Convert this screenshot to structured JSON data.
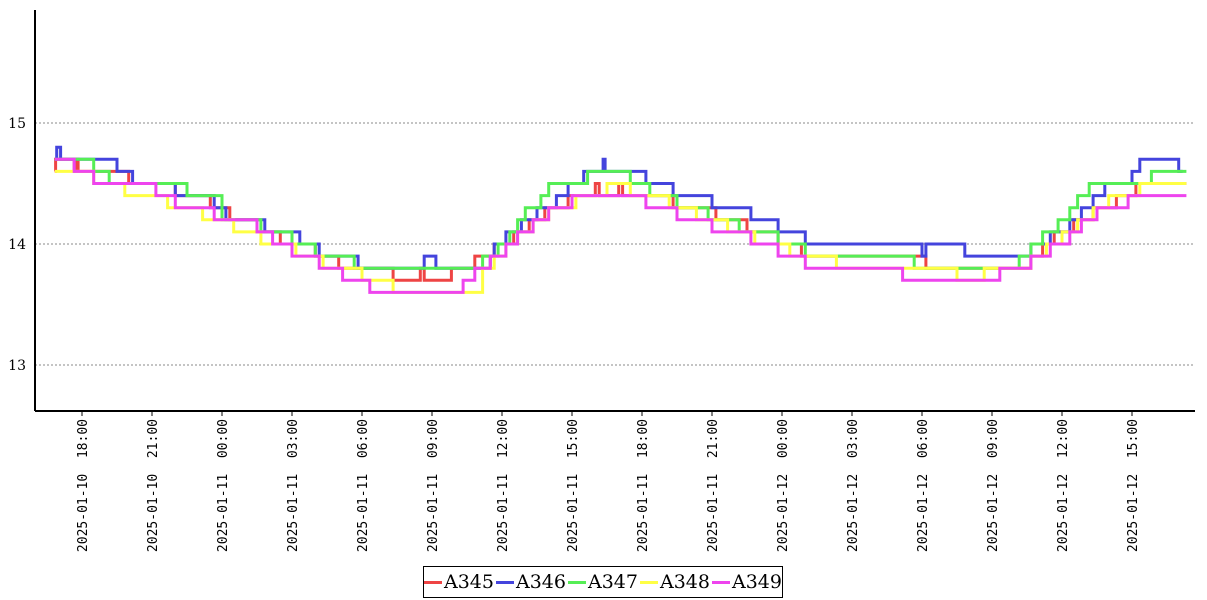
{
  "chart_data": {
    "type": "line",
    "title": "",
    "xlabel": "",
    "ylabel": "",
    "x_range": [
      "2025-01-10 16:30",
      "2025-01-12 18:10"
    ],
    "ylim": [
      12.6,
      15.95
    ],
    "y_ticks": [
      13,
      14,
      15
    ],
    "y_tick_labels": [
      "13",
      "14",
      "15"
    ],
    "x_ticks": [
      "2025-01-10 18:00",
      "2025-01-10 21:00",
      "2025-01-11 00:00",
      "2025-01-11 03:00",
      "2025-01-11 06:00",
      "2025-01-11 09:00",
      "2025-01-11 12:00",
      "2025-01-11 15:00",
      "2025-01-11 18:00",
      "2025-01-11 21:00",
      "2025-01-12 00:00",
      "2025-01-12 03:00",
      "2025-01-12 06:00",
      "2025-01-12 09:00",
      "2025-01-12 12:00",
      "2025-01-12 15:00"
    ],
    "x_tick_labels": [
      "2025-01-10 18:00",
      "2025-01-10 21:00",
      "2025-01-11 00:00",
      "2025-01-11 03:00",
      "2025-01-11 06:00",
      "2025-01-11 09:00",
      "2025-01-11 12:00",
      "2025-01-11 15:00",
      "2025-01-11 18:00",
      "2025-01-11 21:00",
      "2025-01-12 00:00",
      "2025-01-12 03:00",
      "2025-01-12 06:00",
      "2025-01-12 09:00",
      "2025-01-12 12:00",
      "2025-01-12 15:00"
    ],
    "grid": "horizontal dotted",
    "legend_position": "bottom-center",
    "step": true,
    "series": [
      {
        "name": "A345",
        "color": "#ee4444",
        "points": [
          [
            "2025-01-10 16:50",
            14.6
          ],
          [
            "2025-01-10 16:52",
            14.7
          ],
          [
            "2025-01-10 17:40",
            14.6
          ],
          [
            "2025-01-10 17:45",
            14.7
          ],
          [
            "2025-01-10 17:50",
            14.6
          ],
          [
            "2025-01-10 20:00",
            14.5
          ],
          [
            "2025-01-10 22:00",
            14.4
          ],
          [
            "2025-01-10 23:30",
            14.3
          ],
          [
            "2025-01-11 00:20",
            14.2
          ],
          [
            "2025-01-11 01:30",
            14.1
          ],
          [
            "2025-01-11 02:30",
            14.0
          ],
          [
            "2025-01-11 04:00",
            13.9
          ],
          [
            "2025-01-11 05:00",
            13.8
          ],
          [
            "2025-01-11 07:20",
            13.7
          ],
          [
            "2025-01-11 08:30",
            13.8
          ],
          [
            "2025-01-11 08:40",
            13.7
          ],
          [
            "2025-01-11 09:50",
            13.8
          ],
          [
            "2025-01-11 10:50",
            13.9
          ],
          [
            "2025-01-11 11:40",
            14.0
          ],
          [
            "2025-01-11 12:30",
            14.1
          ],
          [
            "2025-01-11 13:10",
            14.2
          ],
          [
            "2025-01-11 13:50",
            14.3
          ],
          [
            "2025-01-11 14:50",
            14.4
          ],
          [
            "2025-01-11 16:00",
            14.5
          ],
          [
            "2025-01-11 16:10",
            14.4
          ],
          [
            "2025-01-11 17:00",
            14.5
          ],
          [
            "2025-01-11 17:10",
            14.4
          ],
          [
            "2025-01-11 19:20",
            14.3
          ],
          [
            "2025-01-11 21:10",
            14.2
          ],
          [
            "2025-01-11 22:30",
            14.1
          ],
          [
            "2025-01-11 23:50",
            14.0
          ],
          [
            "2025-01-12 00:50",
            13.9
          ],
          [
            "2025-01-12 06:10",
            13.8
          ],
          [
            "2025-01-12 10:40",
            13.9
          ],
          [
            "2025-01-12 11:10",
            14.0
          ],
          [
            "2025-01-12 11:40",
            14.1
          ],
          [
            "2025-01-12 12:30",
            14.2
          ],
          [
            "2025-01-12 13:20",
            14.3
          ],
          [
            "2025-01-12 14:20",
            14.4
          ],
          [
            "2025-01-12 15:10",
            14.5
          ],
          [
            "2025-01-12 17:20",
            14.5
          ]
        ]
      },
      {
        "name": "A346",
        "color": "#4444dd",
        "points": [
          [
            "2025-01-10 16:50",
            14.7
          ],
          [
            "2025-01-10 16:55",
            14.8
          ],
          [
            "2025-01-10 17:05",
            14.7
          ],
          [
            "2025-01-10 19:30",
            14.6
          ],
          [
            "2025-01-10 20:10",
            14.5
          ],
          [
            "2025-01-10 22:00",
            14.4
          ],
          [
            "2025-01-10 23:40",
            14.3
          ],
          [
            "2025-01-11 00:10",
            14.2
          ],
          [
            "2025-01-11 01:00",
            14.2
          ],
          [
            "2025-01-11 01:50",
            14.1
          ],
          [
            "2025-01-11 03:20",
            14.0
          ],
          [
            "2025-01-11 04:10",
            13.9
          ],
          [
            "2025-01-11 05:50",
            13.8
          ],
          [
            "2025-01-11 08:40",
            13.9
          ],
          [
            "2025-01-11 09:10",
            13.8
          ],
          [
            "2025-01-11 10:10",
            13.8
          ],
          [
            "2025-01-11 11:30",
            13.9
          ],
          [
            "2025-01-11 11:40",
            14.0
          ],
          [
            "2025-01-11 12:10",
            14.1
          ],
          [
            "2025-01-11 12:50",
            14.2
          ],
          [
            "2025-01-11 13:30",
            14.3
          ],
          [
            "2025-01-11 14:20",
            14.4
          ],
          [
            "2025-01-11 14:50",
            14.5
          ],
          [
            "2025-01-11 15:30",
            14.6
          ],
          [
            "2025-01-11 16:20",
            14.7
          ],
          [
            "2025-01-11 16:25",
            14.6
          ],
          [
            "2025-01-11 18:10",
            14.5
          ],
          [
            "2025-01-11 19:20",
            14.4
          ],
          [
            "2025-01-11 21:00",
            14.3
          ],
          [
            "2025-01-11 22:40",
            14.2
          ],
          [
            "2025-01-11 23:50",
            14.1
          ],
          [
            "2025-01-12 01:00",
            14.0
          ],
          [
            "2025-01-12 02:10",
            14.0
          ],
          [
            "2025-01-12 06:00",
            13.9
          ],
          [
            "2025-01-12 06:10",
            14.0
          ],
          [
            "2025-01-12 06:40",
            14.0
          ],
          [
            "2025-01-12 07:50",
            13.9
          ],
          [
            "2025-01-12 10:40",
            14.0
          ],
          [
            "2025-01-12 11:30",
            14.1
          ],
          [
            "2025-01-12 12:20",
            14.2
          ],
          [
            "2025-01-12 12:50",
            14.3
          ],
          [
            "2025-01-12 13:20",
            14.4
          ],
          [
            "2025-01-12 13:50",
            14.5
          ],
          [
            "2025-01-12 15:00",
            14.6
          ],
          [
            "2025-01-12 15:20",
            14.7
          ],
          [
            "2025-01-12 17:00",
            14.6
          ],
          [
            "2025-01-12 17:10",
            14.6
          ]
        ]
      },
      {
        "name": "A347",
        "color": "#55ee55",
        "points": [
          [
            "2025-01-10 16:50",
            14.7
          ],
          [
            "2025-01-10 18:30",
            14.6
          ],
          [
            "2025-01-10 19:10",
            14.5
          ],
          [
            "2025-01-10 21:10",
            14.5
          ],
          [
            "2025-01-10 22:30",
            14.4
          ],
          [
            "2025-01-11 00:00",
            14.2
          ],
          [
            "2025-01-11 01:40",
            14.1
          ],
          [
            "2025-01-11 03:00",
            14.0
          ],
          [
            "2025-01-11 04:00",
            13.9
          ],
          [
            "2025-01-11 05:40",
            13.8
          ],
          [
            "2025-01-11 08:00",
            13.8
          ],
          [
            "2025-01-11 10:30",
            13.8
          ],
          [
            "2025-01-11 11:10",
            13.9
          ],
          [
            "2025-01-11 11:50",
            14.0
          ],
          [
            "2025-01-11 12:20",
            14.1
          ],
          [
            "2025-01-11 12:40",
            14.2
          ],
          [
            "2025-01-11 13:00",
            14.3
          ],
          [
            "2025-01-11 13:40",
            14.4
          ],
          [
            "2025-01-11 14:00",
            14.5
          ],
          [
            "2025-01-11 15:20",
            14.5
          ],
          [
            "2025-01-11 15:40",
            14.6
          ],
          [
            "2025-01-11 17:30",
            14.5
          ],
          [
            "2025-01-11 18:20",
            14.4
          ],
          [
            "2025-01-11 19:30",
            14.3
          ],
          [
            "2025-01-11 20:50",
            14.2
          ],
          [
            "2025-01-11 22:10",
            14.1
          ],
          [
            "2025-01-11 23:50",
            14.0
          ],
          [
            "2025-01-12 01:00",
            13.9
          ],
          [
            "2025-01-12 03:40",
            13.9
          ],
          [
            "2025-01-12 05:40",
            13.8
          ],
          [
            "2025-01-12 07:40",
            13.8
          ],
          [
            "2025-01-12 10:10",
            13.9
          ],
          [
            "2025-01-12 10:40",
            14.0
          ],
          [
            "2025-01-12 11:10",
            14.1
          ],
          [
            "2025-01-12 11:50",
            14.2
          ],
          [
            "2025-01-12 12:20",
            14.3
          ],
          [
            "2025-01-12 12:40",
            14.4
          ],
          [
            "2025-01-12 13:10",
            14.5
          ],
          [
            "2025-01-12 14:20",
            14.5
          ],
          [
            "2025-01-12 15:50",
            14.6
          ],
          [
            "2025-01-12 17:20",
            14.6
          ]
        ]
      },
      {
        "name": "A348",
        "color": "#ffff44",
        "points": [
          [
            "2025-01-10 16:50",
            14.6
          ],
          [
            "2025-01-10 18:30",
            14.5
          ],
          [
            "2025-01-10 19:50",
            14.4
          ],
          [
            "2025-01-10 21:40",
            14.3
          ],
          [
            "2025-01-10 23:10",
            14.2
          ],
          [
            "2025-01-11 00:30",
            14.1
          ],
          [
            "2025-01-11 01:40",
            14.0
          ],
          [
            "2025-01-11 03:10",
            13.9
          ],
          [
            "2025-01-11 04:20",
            13.8
          ],
          [
            "2025-01-11 06:00",
            13.7
          ],
          [
            "2025-01-11 07:20",
            13.6
          ],
          [
            "2025-01-11 10:00",
            13.6
          ],
          [
            "2025-01-11 11:10",
            13.8
          ],
          [
            "2025-01-11 11:40",
            13.9
          ],
          [
            "2025-01-11 12:10",
            14.0
          ],
          [
            "2025-01-11 12:40",
            14.1
          ],
          [
            "2025-01-11 13:20",
            14.2
          ],
          [
            "2025-01-11 14:00",
            14.3
          ],
          [
            "2025-01-11 15:10",
            14.4
          ],
          [
            "2025-01-11 16:30",
            14.5
          ],
          [
            "2025-01-11 17:30",
            14.4
          ],
          [
            "2025-01-11 19:10",
            14.3
          ],
          [
            "2025-01-11 20:20",
            14.2
          ],
          [
            "2025-01-11 21:40",
            14.1
          ],
          [
            "2025-01-11 22:50",
            14.0
          ],
          [
            "2025-01-12 00:20",
            13.9
          ],
          [
            "2025-01-12 02:20",
            13.8
          ],
          [
            "2025-01-12 07:30",
            13.7
          ],
          [
            "2025-01-12 08:40",
            13.8
          ],
          [
            "2025-01-12 10:40",
            13.9
          ],
          [
            "2025-01-12 11:20",
            14.0
          ],
          [
            "2025-01-12 12:00",
            14.1
          ],
          [
            "2025-01-12 12:40",
            14.2
          ],
          [
            "2025-01-12 13:20",
            14.3
          ],
          [
            "2025-01-12 14:00",
            14.4
          ],
          [
            "2025-01-12 15:20",
            14.5
          ],
          [
            "2025-01-12 17:20",
            14.5
          ]
        ]
      },
      {
        "name": "A349",
        "color": "#ee44ee",
        "points": [
          [
            "2025-01-10 16:50",
            14.7
          ],
          [
            "2025-01-10 17:40",
            14.6
          ],
          [
            "2025-01-10 18:30",
            14.5
          ],
          [
            "2025-01-10 19:40",
            14.5
          ],
          [
            "2025-01-10 21:10",
            14.4
          ],
          [
            "2025-01-10 22:00",
            14.3
          ],
          [
            "2025-01-10 23:40",
            14.2
          ],
          [
            "2025-01-11 01:30",
            14.1
          ],
          [
            "2025-01-11 02:10",
            14.0
          ],
          [
            "2025-01-11 03:00",
            13.9
          ],
          [
            "2025-01-11 04:10",
            13.8
          ],
          [
            "2025-01-11 05:10",
            13.7
          ],
          [
            "2025-01-11 06:20",
            13.6
          ],
          [
            "2025-01-11 10:20",
            13.7
          ],
          [
            "2025-01-11 10:50",
            13.8
          ],
          [
            "2025-01-11 11:30",
            13.9
          ],
          [
            "2025-01-11 12:10",
            14.0
          ],
          [
            "2025-01-11 12:40",
            14.1
          ],
          [
            "2025-01-11 13:20",
            14.2
          ],
          [
            "2025-01-11 14:00",
            14.3
          ],
          [
            "2025-01-11 15:00",
            14.4
          ],
          [
            "2025-01-11 18:10",
            14.3
          ],
          [
            "2025-01-11 19:30",
            14.2
          ],
          [
            "2025-01-11 21:00",
            14.1
          ],
          [
            "2025-01-11 22:40",
            14.0
          ],
          [
            "2025-01-11 23:50",
            13.9
          ],
          [
            "2025-01-12 01:00",
            13.8
          ],
          [
            "2025-01-12 04:40",
            13.8
          ],
          [
            "2025-01-12 05:10",
            13.7
          ],
          [
            "2025-01-12 08:40",
            13.7
          ],
          [
            "2025-01-12 09:20",
            13.8
          ],
          [
            "2025-01-12 10:40",
            13.9
          ],
          [
            "2025-01-12 11:30",
            14.0
          ],
          [
            "2025-01-12 12:20",
            14.1
          ],
          [
            "2025-01-12 12:50",
            14.2
          ],
          [
            "2025-01-12 13:30",
            14.3
          ],
          [
            "2025-01-12 14:50",
            14.4
          ],
          [
            "2025-01-12 17:20",
            14.4
          ]
        ]
      }
    ]
  }
}
